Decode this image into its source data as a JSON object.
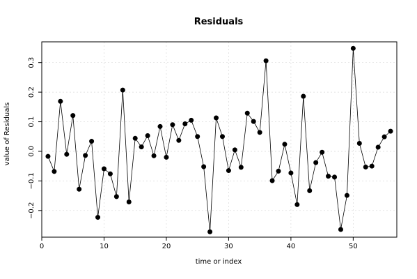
{
  "chart_data": {
    "type": "line",
    "title": "Residuals",
    "xlabel": "time or index",
    "ylabel": "value of Residuals",
    "xlim": [
      0,
      57
    ],
    "ylim": [
      -0.29,
      0.37
    ],
    "xticks": [
      0,
      10,
      20,
      30,
      40,
      50
    ],
    "yticks": [
      -0.2,
      -0.1,
      0.0,
      0.1,
      0.2,
      0.3
    ],
    "ytick_labels": [
      "−0.2",
      "−0.1",
      "0.0",
      "0.1",
      "0.2",
      "0.3"
    ],
    "grid": true,
    "marker": "filled-circle",
    "line_style": "solid",
    "color": "#000000",
    "x": [
      1,
      2,
      3,
      4,
      5,
      6,
      7,
      8,
      9,
      10,
      11,
      12,
      13,
      14,
      15,
      16,
      17,
      18,
      19,
      20,
      21,
      22,
      23,
      24,
      25,
      26,
      27,
      28,
      29,
      30,
      31,
      32,
      33,
      34,
      35,
      36,
      37,
      38,
      39,
      40,
      41,
      42,
      43,
      44,
      45,
      46,
      47,
      48,
      49,
      50,
      51,
      52,
      53,
      54,
      55,
      56
    ],
    "y": [
      -0.017,
      -0.068,
      0.169,
      -0.01,
      0.121,
      -0.128,
      -0.014,
      0.034,
      -0.223,
      -0.059,
      -0.076,
      -0.153,
      0.207,
      -0.171,
      0.044,
      0.015,
      0.053,
      -0.015,
      0.084,
      -0.02,
      0.09,
      0.037,
      0.093,
      0.105,
      0.05,
      -0.052,
      -0.272,
      0.113,
      0.05,
      -0.065,
      0.005,
      -0.054,
      0.129,
      0.101,
      0.064,
      0.306,
      -0.099,
      -0.067,
      0.024,
      -0.073,
      -0.18,
      0.186,
      -0.133,
      -0.038,
      -0.003,
      -0.084,
      -0.087,
      -0.264,
      -0.149,
      0.348,
      0.027,
      -0.053,
      -0.05,
      0.014,
      0.049,
      0.068
    ]
  }
}
